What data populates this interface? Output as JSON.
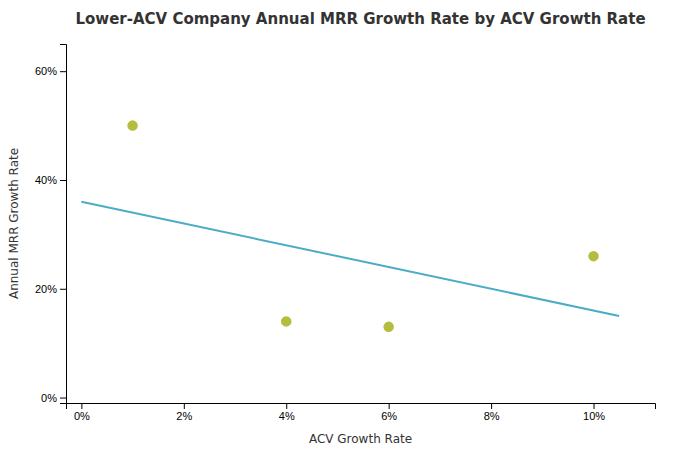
{
  "chart_data": {
    "type": "scatter",
    "title": "Lower-ACV Company Annual MRR Growth Rate by ACV Growth Rate",
    "xlabel": "ACV Growth Rate",
    "ylabel": "Annual MRR Growth Rate",
    "series": [
      {
        "type": "scatter",
        "x": [
          0.01,
          0.04,
          0.06,
          0.1
        ],
        "values": [
          0.5,
          0.14,
          0.13,
          0.26
        ],
        "color": "#b5bd3e"
      },
      {
        "type": "line",
        "x": [
          0.0,
          0.105
        ],
        "values": [
          0.36,
          0.15
        ],
        "color": "#4bacc6"
      }
    ],
    "xlim": [
      -0.003,
      0.112
    ],
    "ylim": [
      -0.01,
      0.65
    ],
    "xticks": [
      {
        "value": 0.0,
        "label": "0%"
      },
      {
        "value": 0.02,
        "label": "2%"
      },
      {
        "value": 0.04,
        "label": "4%"
      },
      {
        "value": 0.06,
        "label": "6%"
      },
      {
        "value": 0.08,
        "label": "8%"
      },
      {
        "value": 0.1,
        "label": "10%"
      }
    ],
    "yticks": [
      {
        "value": 0.0,
        "label": "0%"
      },
      {
        "value": 0.2,
        "label": "20%"
      },
      {
        "value": 0.4,
        "label": "40%"
      },
      {
        "value": 0.6,
        "label": "60%"
      }
    ],
    "grid": false
  }
}
